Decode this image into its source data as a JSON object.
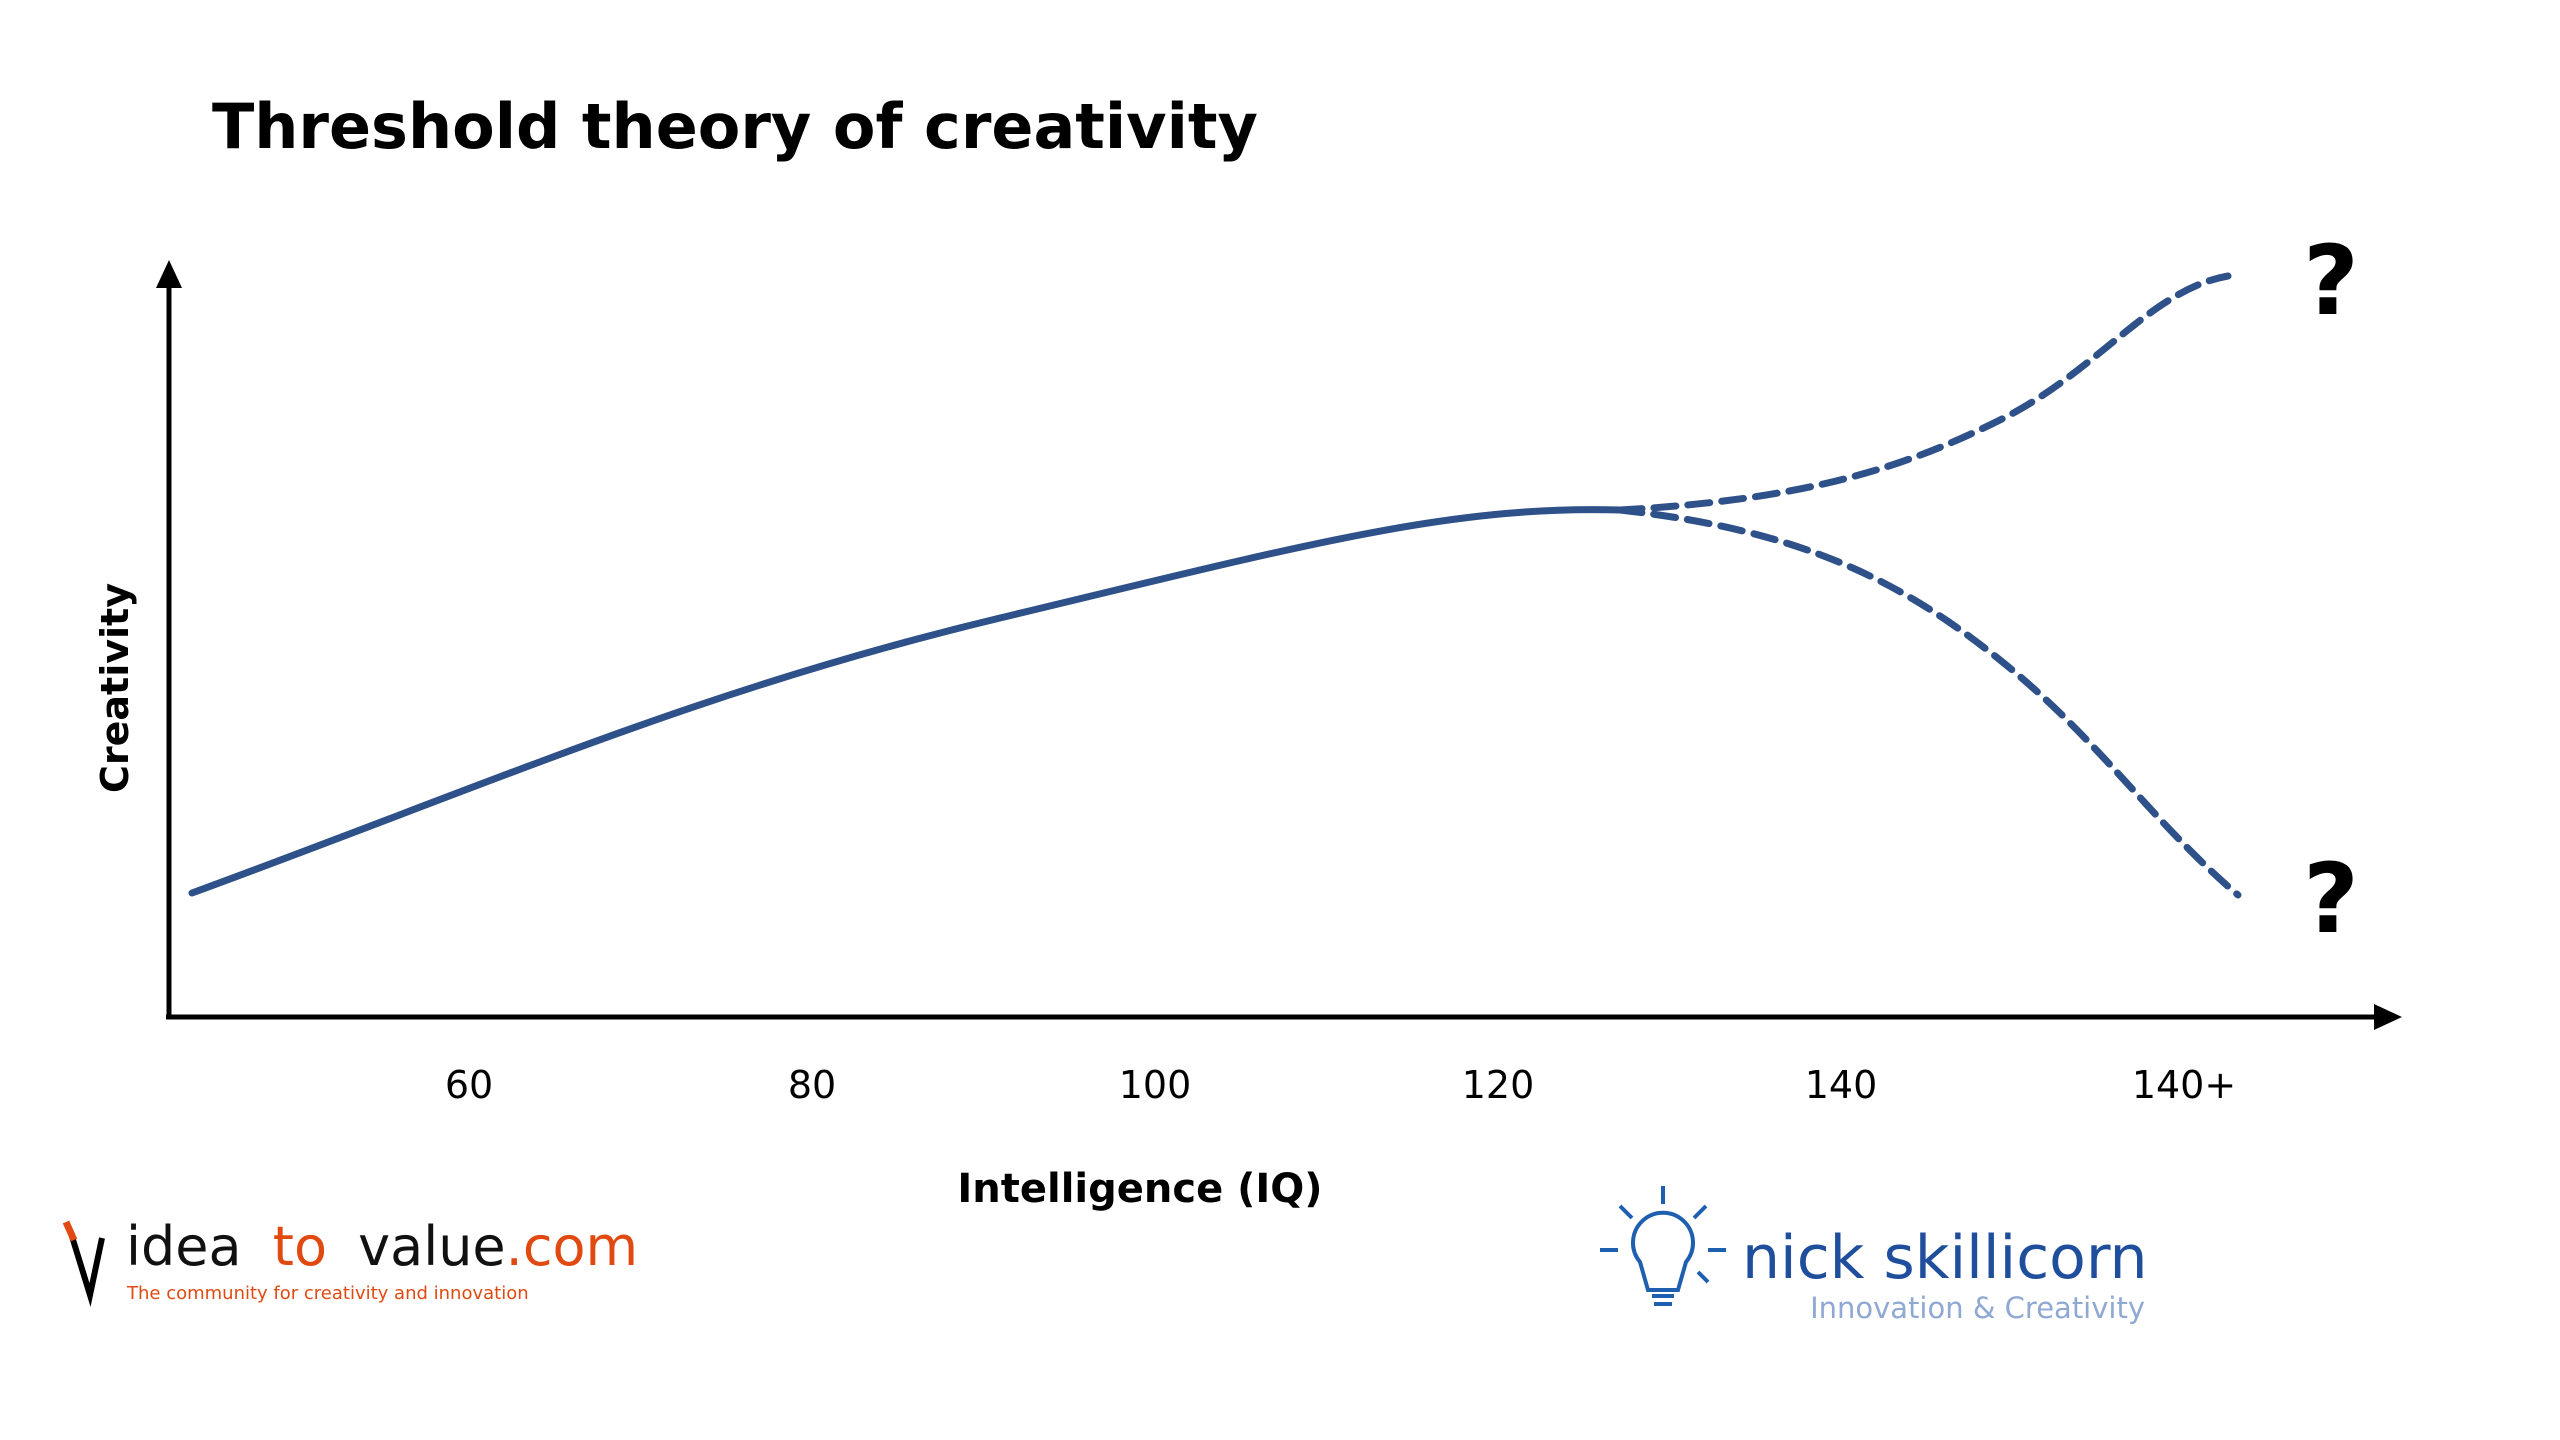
{
  "chart_data": {
    "type": "line",
    "title": "Threshold theory of creativity",
    "x_label": "Intelligence (IQ)",
    "y_label": "Creativity",
    "categories": [
      "60",
      "80",
      "100",
      "120",
      "140",
      "140+"
    ],
    "annotations": [
      "?",
      "?"
    ],
    "color": "#2f5189"
  },
  "logos": {
    "left": {
      "parts": [
        "idea",
        "to",
        "value",
        ".com"
      ],
      "tagline": "The community for creativity and innovation"
    },
    "right": {
      "name": "nick skillicorn",
      "tagline": "Innovation & Creativity"
    }
  }
}
